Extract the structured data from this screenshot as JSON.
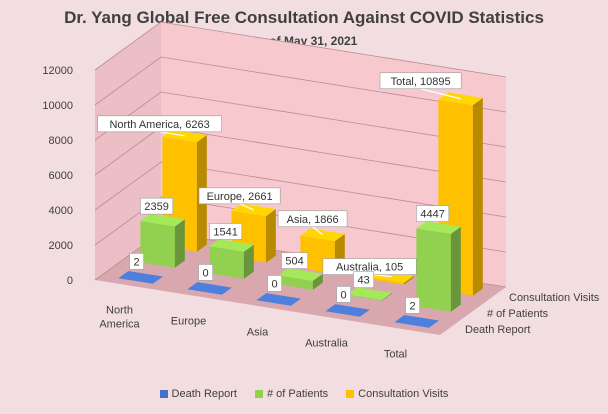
{
  "title": "Dr. Yang Global Free Consultation Against COVID Statistics",
  "subtitle": "As of May 31, 2021",
  "colors": {
    "death": "#4472c4",
    "patients": "#92d050",
    "visits": "#ffc000",
    "wall": "#f7c9cf",
    "floor": "#d9a8ae",
    "background": "#f2dde1"
  },
  "chart_data": {
    "type": "bar",
    "title": "Dr. Yang Global Free Consultation Against COVID Statistics",
    "subtitle": "As of May 31, 2021",
    "categories": [
      "North America",
      "Europe",
      "Asia",
      "Australia",
      "Total"
    ],
    "category_labels": [
      [
        "North",
        "America"
      ],
      [
        "Europe"
      ],
      [
        "Asia"
      ],
      [
        "Australia"
      ],
      [
        "Total"
      ]
    ],
    "series": [
      {
        "name": "Death Report",
        "values": [
          2,
          0,
          0,
          0,
          2
        ]
      },
      {
        "name": "# of Patients",
        "values": [
          2359,
          1541,
          504,
          43,
          4447
        ]
      },
      {
        "name": "Consultation Visits",
        "values": [
          6263,
          2661,
          1866,
          105,
          10895
        ]
      }
    ],
    "visit_labels": [
      "North America, 6263",
      "Europe, 2661",
      "Asia, 1866",
      "Australia, 105",
      "Total, 10895"
    ],
    "yticks": [
      "0",
      "2000",
      "4000",
      "6000",
      "8000",
      "10000",
      "12000"
    ],
    "ylim": [
      0,
      12000
    ],
    "legend_position": "bottom",
    "grid": true
  }
}
